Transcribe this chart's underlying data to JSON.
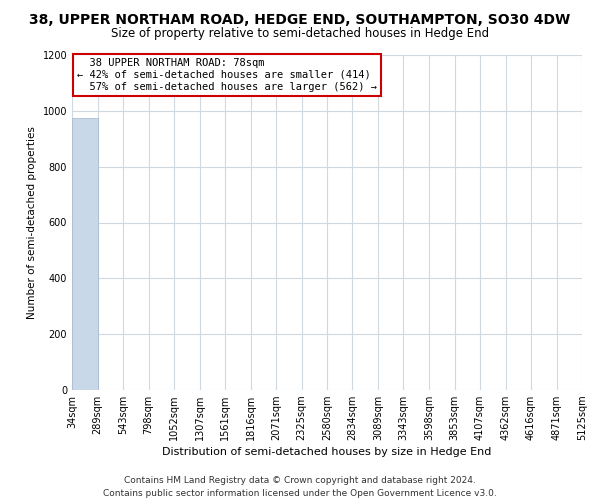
{
  "title": "38, UPPER NORTHAM ROAD, HEDGE END, SOUTHAMPTON, SO30 4DW",
  "subtitle": "Size of property relative to semi-detached houses in Hedge End",
  "xlabel": "Distribution of semi-detached houses by size in Hedge End",
  "ylabel": "Number of semi-detached properties",
  "property_label": "38 UPPER NORTHAM ROAD: 78sqm",
  "pct_smaller": 42,
  "pct_larger": 57,
  "count_smaller": 414,
  "count_larger": 562,
  "bin_edges": [
    34,
    289,
    543,
    798,
    1052,
    1307,
    1561,
    1816,
    2071,
    2325,
    2580,
    2834,
    3089,
    3343,
    3598,
    3853,
    4107,
    4362,
    4616,
    4871,
    5125
  ],
  "bar_heights": [
    976,
    0,
    0,
    0,
    0,
    0,
    0,
    0,
    0,
    0,
    0,
    0,
    0,
    0,
    0,
    0,
    0,
    0,
    0,
    0
  ],
  "bar_color": "#c8d8e8",
  "bar_edge_color": "#a0b8cc",
  "annotation_box_color": "#cc0000",
  "grid_color": "#d0d8e0",
  "bg_color": "#ffffff",
  "ylim": [
    0,
    1200
  ],
  "yticks": [
    0,
    200,
    400,
    600,
    800,
    1000,
    1200
  ],
  "title_fontsize": 10,
  "subtitle_fontsize": 8.5,
  "footer": "Contains HM Land Registry data © Crown copyright and database right 2024.\nContains public sector information licensed under the Open Government Licence v3.0."
}
